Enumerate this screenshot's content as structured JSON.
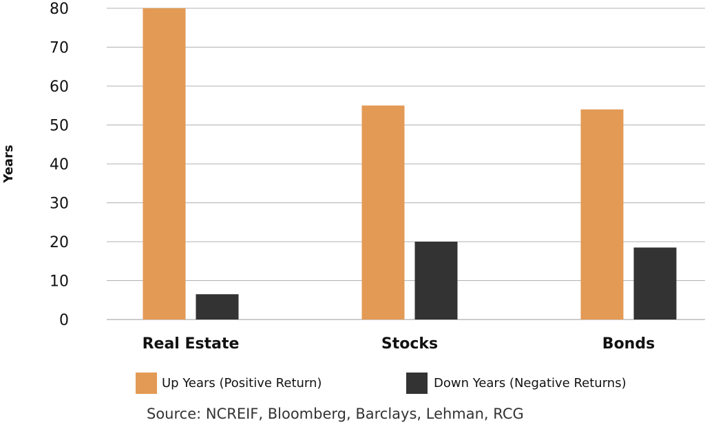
{
  "chart_data": {
    "type": "bar",
    "categories": [
      "Real Estate",
      "Stocks",
      "Bonds"
    ],
    "series": [
      {
        "name": "Up Years (Positive Return)",
        "values": [
          80,
          55,
          54
        ],
        "color": "#E39A54"
      },
      {
        "name": "Down Years (Negative Returns)",
        "values": [
          6.5,
          20,
          18.5
        ],
        "color": "#333333"
      }
    ],
    "ylabel": "Years",
    "ylim": [
      0,
      80
    ],
    "yticks": [
      0,
      10,
      20,
      30,
      40,
      50,
      60,
      70,
      80
    ],
    "grid": true,
    "legend_position": "bottom",
    "source": "Source: NCREIF, Bloomberg, Barclays, Lehman, RCG"
  }
}
